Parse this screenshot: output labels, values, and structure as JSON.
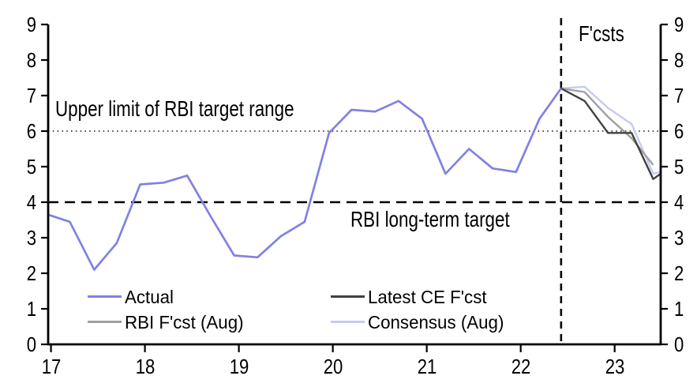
{
  "chart_data": {
    "type": "line",
    "title": "",
    "xlabel": "",
    "ylabel": "",
    "grid": false,
    "x_axis": {
      "min": 16.97,
      "max": 23.49,
      "ticks": [
        "17",
        "18",
        "19",
        "20",
        "21",
        "22",
        "23"
      ],
      "tick_values": [
        17,
        18,
        19,
        20,
        21,
        22,
        23
      ]
    },
    "y_axis": {
      "min": 0,
      "max": 9,
      "ticks": [
        "0",
        "1",
        "2",
        "3",
        "4",
        "5",
        "6",
        "7",
        "8",
        "9"
      ],
      "tick_values": [
        0,
        1,
        2,
        3,
        4,
        5,
        6,
        7,
        8,
        9
      ],
      "shown_on": "both"
    },
    "series": [
      {
        "name": "Actual",
        "color": "#8181e3",
        "x": [
          16.97,
          17.2,
          17.46,
          17.7,
          17.95,
          18.2,
          18.45,
          18.7,
          18.95,
          19.2,
          19.45,
          19.7,
          19.96,
          20.2,
          20.45,
          20.7,
          20.95,
          21.2,
          21.45,
          21.7,
          21.95,
          22.2,
          22.43
        ],
        "y": [
          3.65,
          3.45,
          2.1,
          2.85,
          4.5,
          4.55,
          4.75,
          3.6,
          2.5,
          2.45,
          3.05,
          3.45,
          5.95,
          6.6,
          6.55,
          6.85,
          6.35,
          4.8,
          5.5,
          4.95,
          4.85,
          6.35,
          7.2
        ]
      },
      {
        "name": "Latest CE F'cst",
        "color": "#404040",
        "x": [
          22.43,
          22.68,
          22.93,
          23.18,
          23.41,
          23.49
        ],
        "y": [
          7.2,
          6.85,
          5.95,
          5.95,
          4.65,
          4.8
        ]
      },
      {
        "name": "RBI F'cst (Aug)",
        "color": "#a0a0a0",
        "x": [
          22.43,
          22.68,
          22.93,
          23.18,
          23.41
        ],
        "y": [
          7.2,
          7.1,
          6.4,
          5.8,
          5.05
        ]
      },
      {
        "name": "Consensus (Aug)",
        "color": "#c7cbf2",
        "x": [
          22.43,
          22.68,
          22.93,
          23.18,
          23.41,
          23.49
        ],
        "y": [
          7.2,
          7.25,
          6.65,
          6.2,
          4.8,
          4.85
        ]
      }
    ],
    "reference_lines": [
      {
        "orientation": "horizontal",
        "value": 6,
        "style": "dotted",
        "label": "Upper limit of RBI target range"
      },
      {
        "orientation": "horizontal",
        "value": 4,
        "style": "dashed",
        "label": "RBI long-term target"
      },
      {
        "orientation": "vertical",
        "value": 22.43,
        "style": "dashed",
        "label": "F'csts"
      }
    ],
    "legend": {
      "position": "bottom-inside",
      "items": [
        {
          "label": "Actual",
          "color": "#8181e3"
        },
        {
          "label": "RBI F'cst (Aug)",
          "color": "#a0a0a0"
        },
        {
          "label": "Latest CE F'cst",
          "color": "#404040"
        },
        {
          "label": "Consensus (Aug)",
          "color": "#c7cbf2"
        }
      ]
    }
  }
}
